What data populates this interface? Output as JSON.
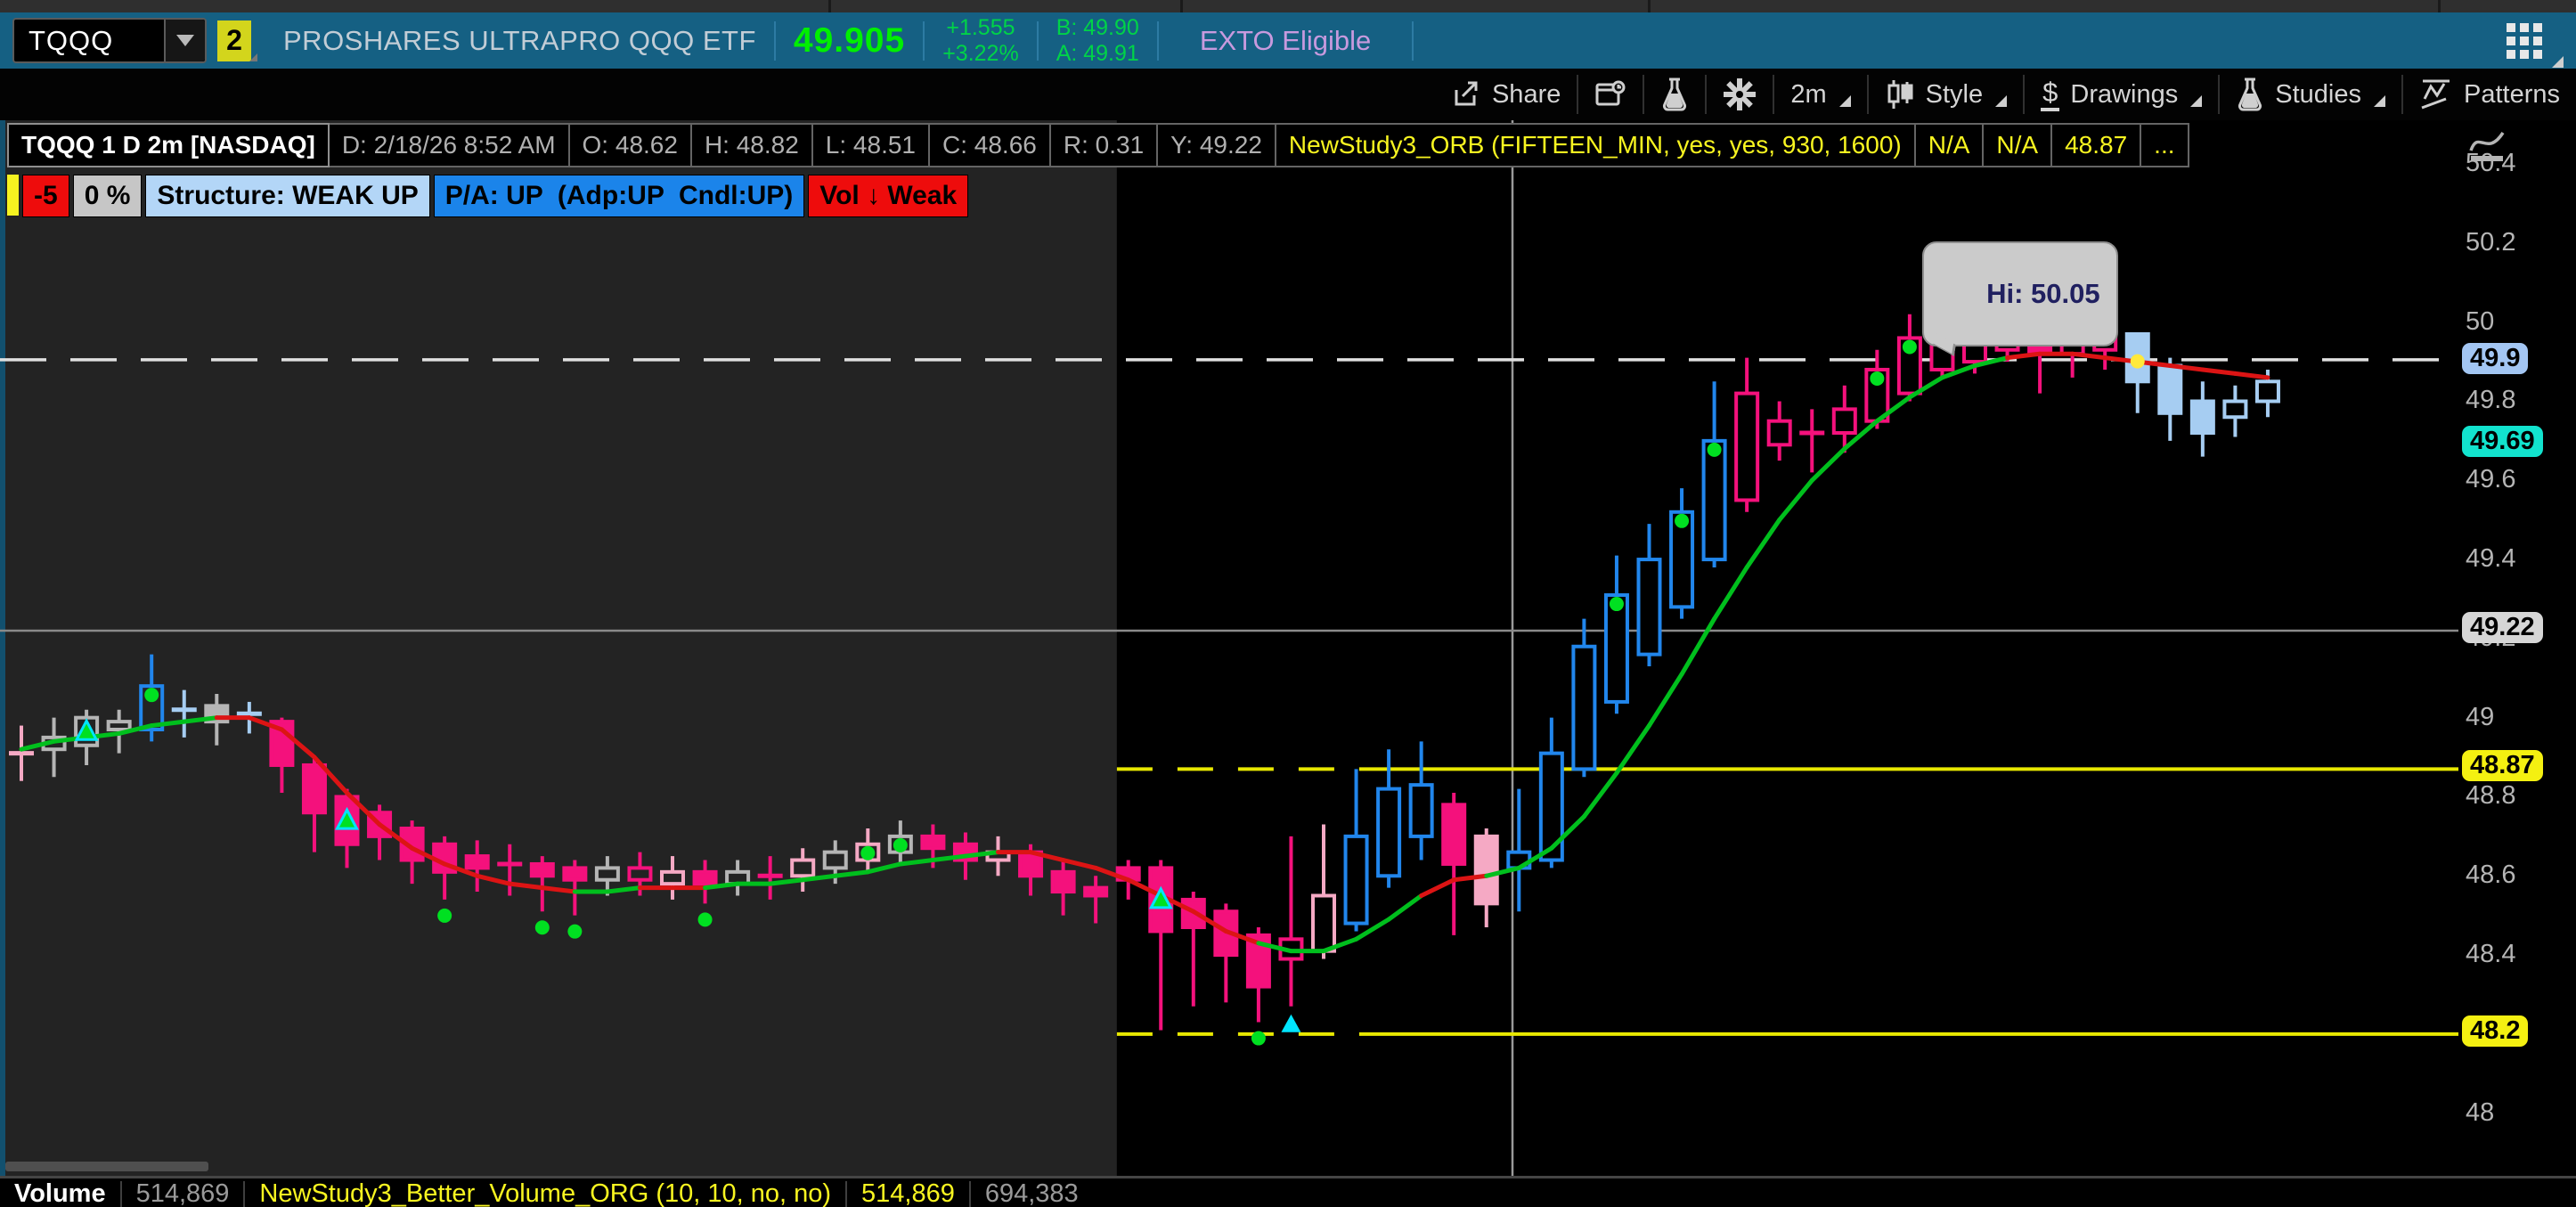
{
  "symbol_bar": {
    "symbol": "TQQQ",
    "linked_badge": "2",
    "description": "PROSHARES ULTRAPRO QQQ ETF",
    "last_price": "49.905",
    "change": "+1.555",
    "change_pct": "+3.22%",
    "bid": "B: 49.90",
    "ask": "A: 49.91",
    "tag": "EXTO Eligible"
  },
  "toolbar": {
    "share": "Share",
    "interval": "2m",
    "style": "Style",
    "drawings": "Drawings",
    "studies": "Studies",
    "patterns": "Patterns"
  },
  "chart_header": {
    "title": "TQQQ 1 D 2m [NASDAQ]",
    "cells": [
      "D: 2/18/26 8:52 AM",
      "O: 48.62",
      "H: 48.82",
      "L: 48.51",
      "C: 48.66",
      "R: 0.31",
      "Y: 49.22"
    ],
    "study_cells": [
      "NewStudy3_ORB (FIFTEEN_MIN, yes, yes, 930, 1600)",
      "N/A",
      "N/A",
      "48.87",
      "..."
    ]
  },
  "status_badges": [
    {
      "label": "-5",
      "bg": "#ee0c0c",
      "fg": "#000000"
    },
    {
      "label": "0 %",
      "bg": "#c6c6c6",
      "fg": "#000000"
    },
    {
      "label": "Structure: WEAK UP",
      "bg": "#b3d6f7",
      "fg": "#000000"
    },
    {
      "label": "P/A: UP  (Adp:UP  Cndl:UP)",
      "bg": "#1b84ea",
      "fg": "#000000"
    },
    {
      "label": "Vol ↓ Weak",
      "bg": "#ee0c0c",
      "fg": "#000000"
    }
  ],
  "price_axis": {
    "ticks": [
      {
        "label": "50.4",
        "price": 50.4
      },
      {
        "label": "50.2",
        "price": 50.2
      },
      {
        "label": "50",
        "price": 50.0
      },
      {
        "label": "49.8",
        "price": 49.8
      },
      {
        "label": "49.6",
        "price": 49.6
      },
      {
        "label": "49.4",
        "price": 49.4
      },
      {
        "label": "49.2",
        "price": 49.2
      },
      {
        "label": "49",
        "price": 49.0
      },
      {
        "label": "48.8",
        "price": 48.8
      },
      {
        "label": "48.6",
        "price": 48.6
      },
      {
        "label": "48.4",
        "price": 48.4
      },
      {
        "label": "48",
        "price": 48.0
      }
    ],
    "badges": [
      {
        "label": "49.9",
        "price": 49.9,
        "bg": "#a3c6f3"
      },
      {
        "label": "49.69",
        "price": 49.69,
        "bg": "#12e3ce"
      },
      {
        "label": "49.22",
        "price": 49.22,
        "bg": "#d6d6d6"
      },
      {
        "label": "48.87",
        "price": 48.87,
        "bg": "#f4f011"
      },
      {
        "label": "48.2",
        "price": 48.2,
        "bg": "#f4f011"
      }
    ]
  },
  "chart_data": {
    "type": "candlestick",
    "symbol": "TQQQ",
    "interval": "2m",
    "title": "TQQQ 1 D 2m [NASDAQ]",
    "ylim": [
      47.95,
      50.45
    ],
    "tooltip": {
      "text": "Hi: 50.05",
      "price": 50.05,
      "candle_index": 59
    },
    "levels": {
      "dashed_white": 49.905,
      "prev_close_gray": 49.22,
      "orb_high_yellow": 48.87,
      "orb_low_yellow": 48.2
    },
    "session_split_index": 34,
    "colors": {
      "pink": "#f4117c",
      "lightpink": "#f5a9c4",
      "blue": "#2186ec",
      "lightblue": "#a6cdf2",
      "gray": "#b5b5b5",
      "ma_green": "#00bf1d",
      "ma_red": "#dc1414",
      "marker_green": "#00e021",
      "marker_cyan": "#00e5ff",
      "marker_yellow": "#ffe93b",
      "level_yellow": "#e8e800",
      "level_gray": "#8a8a8a",
      "level_white": "#e0e0e0",
      "bg_premarket": "#232323",
      "bg_session": "#000000"
    },
    "candles": [
      [
        48.91,
        48.98,
        48.84,
        48.91,
        "lpc",
        ""
      ],
      [
        48.92,
        49.0,
        48.85,
        48.95,
        "gh",
        ""
      ],
      [
        48.93,
        49.02,
        48.88,
        49.0,
        "gh",
        "tr"
      ],
      [
        48.97,
        49.02,
        48.91,
        48.99,
        "gh",
        ""
      ],
      [
        48.97,
        49.16,
        48.94,
        49.08,
        "bh",
        "dt"
      ],
      [
        49.02,
        49.07,
        48.95,
        49.02,
        "lbc",
        ""
      ],
      [
        49.03,
        49.06,
        48.93,
        48.99,
        "gf",
        ""
      ],
      [
        49.0,
        49.04,
        48.96,
        49.01,
        "lbc",
        ""
      ],
      [
        48.99,
        49.0,
        48.81,
        48.88,
        "pf",
        ""
      ],
      [
        48.88,
        48.9,
        48.66,
        48.76,
        "pf",
        ""
      ],
      [
        48.8,
        48.82,
        48.62,
        48.68,
        "pf",
        "tr"
      ],
      [
        48.76,
        48.78,
        48.64,
        48.7,
        "pf",
        ""
      ],
      [
        48.72,
        48.74,
        48.58,
        48.64,
        "pf",
        ""
      ],
      [
        48.68,
        48.7,
        48.54,
        48.61,
        "pf",
        "db"
      ],
      [
        48.65,
        48.69,
        48.56,
        48.62,
        "pf",
        ""
      ],
      [
        48.63,
        48.68,
        48.55,
        48.63,
        "pc",
        ""
      ],
      [
        48.63,
        48.65,
        48.51,
        48.6,
        "pf",
        "db"
      ],
      [
        48.62,
        48.64,
        48.5,
        48.59,
        "pf",
        "db"
      ],
      [
        48.59,
        48.65,
        48.55,
        48.62,
        "gh",
        ""
      ],
      [
        48.62,
        48.66,
        48.55,
        48.59,
        "ph",
        ""
      ],
      [
        48.58,
        48.65,
        48.54,
        48.61,
        "lph",
        ""
      ],
      [
        48.61,
        48.64,
        48.53,
        48.58,
        "pf",
        "db"
      ],
      [
        48.58,
        48.64,
        48.55,
        48.61,
        "gh",
        ""
      ],
      [
        48.6,
        48.65,
        48.54,
        48.6,
        "pc",
        ""
      ],
      [
        48.6,
        48.67,
        48.56,
        48.64,
        "lph",
        ""
      ],
      [
        48.62,
        48.69,
        48.58,
        48.66,
        "gh",
        ""
      ],
      [
        48.64,
        48.72,
        48.61,
        48.68,
        "lph",
        "dt"
      ],
      [
        48.66,
        48.74,
        48.63,
        48.7,
        "gh",
        "dt"
      ],
      [
        48.7,
        48.73,
        48.62,
        48.67,
        "pf",
        ""
      ],
      [
        48.68,
        48.71,
        48.59,
        48.64,
        "pf",
        ""
      ],
      [
        48.64,
        48.7,
        48.6,
        48.66,
        "lph",
        ""
      ],
      [
        48.66,
        48.68,
        48.55,
        48.6,
        "pf",
        ""
      ],
      [
        48.61,
        48.64,
        48.5,
        48.56,
        "pf",
        ""
      ],
      [
        48.57,
        48.6,
        48.48,
        48.55,
        "pf",
        ""
      ],
      [
        48.62,
        48.64,
        48.54,
        48.59,
        "pf",
        ""
      ],
      [
        48.62,
        48.64,
        48.21,
        48.46,
        "pf",
        "tr"
      ],
      [
        48.54,
        48.56,
        48.27,
        48.47,
        "pf",
        ""
      ],
      [
        48.51,
        48.53,
        48.28,
        48.4,
        "pf",
        ""
      ],
      [
        48.45,
        48.47,
        48.23,
        48.32,
        "pf",
        "db"
      ],
      [
        48.44,
        48.7,
        48.27,
        48.39,
        "ph",
        "ct"
      ],
      [
        48.41,
        48.73,
        48.39,
        48.55,
        "lph",
        ""
      ],
      [
        48.48,
        48.87,
        48.46,
        48.7,
        "bh",
        ""
      ],
      [
        48.6,
        48.92,
        48.57,
        48.82,
        "bh",
        ""
      ],
      [
        48.7,
        48.94,
        48.64,
        48.83,
        "bh",
        ""
      ],
      [
        48.78,
        48.81,
        48.45,
        48.63,
        "pf",
        ""
      ],
      [
        48.7,
        48.72,
        48.47,
        48.53,
        "lpf",
        ""
      ],
      [
        48.62,
        48.82,
        48.51,
        48.66,
        "bh",
        ""
      ],
      [
        48.64,
        49.0,
        48.62,
        48.91,
        "bh",
        ""
      ],
      [
        48.87,
        49.25,
        48.85,
        49.18,
        "bh",
        ""
      ],
      [
        49.04,
        49.41,
        49.01,
        49.31,
        "bh",
        "dt"
      ],
      [
        49.16,
        49.49,
        49.13,
        49.4,
        "bh",
        ""
      ],
      [
        49.28,
        49.58,
        49.25,
        49.52,
        "bh",
        "dt"
      ],
      [
        49.4,
        49.85,
        49.38,
        49.7,
        "bh",
        "dt"
      ],
      [
        49.82,
        49.91,
        49.52,
        49.55,
        "ph",
        ""
      ],
      [
        49.75,
        49.8,
        49.65,
        49.69,
        "ph",
        ""
      ],
      [
        49.72,
        49.78,
        49.62,
        49.72,
        "pc",
        ""
      ],
      [
        49.72,
        49.84,
        49.67,
        49.78,
        "ph",
        ""
      ],
      [
        49.75,
        49.93,
        49.73,
        49.88,
        "ph",
        "dt"
      ],
      [
        49.82,
        50.02,
        49.8,
        49.96,
        "ph",
        "dt"
      ],
      [
        49.88,
        50.05,
        49.86,
        49.95,
        "ph",
        ""
      ],
      [
        49.9,
        50.0,
        49.87,
        49.95,
        "ph",
        ""
      ],
      [
        49.93,
        50.03,
        49.9,
        49.97,
        "ph",
        ""
      ],
      [
        49.96,
        49.97,
        49.82,
        49.92,
        "pf",
        ""
      ],
      [
        49.92,
        50.01,
        49.86,
        49.96,
        "ph",
        ""
      ],
      [
        49.93,
        50.03,
        49.88,
        49.97,
        "ph",
        ""
      ],
      [
        49.97,
        49.97,
        49.77,
        49.85,
        "lbf",
        "yd"
      ],
      [
        49.89,
        49.91,
        49.7,
        49.77,
        "lbf",
        ""
      ],
      [
        49.8,
        49.85,
        49.66,
        49.72,
        "lbf",
        ""
      ],
      [
        49.76,
        49.84,
        49.71,
        49.8,
        "lbh",
        ""
      ],
      [
        49.8,
        49.88,
        49.76,
        49.85,
        "lbh",
        ""
      ]
    ],
    "ma": [
      [
        48.92,
        "r"
      ],
      [
        48.94,
        "g"
      ],
      [
        48.95,
        "g"
      ],
      [
        48.96,
        "g"
      ],
      [
        48.98,
        "g"
      ],
      [
        48.99,
        "g"
      ],
      [
        49.0,
        "g"
      ],
      [
        49.0,
        "r"
      ],
      [
        48.97,
        "r"
      ],
      [
        48.9,
        "r"
      ],
      [
        48.81,
        "r"
      ],
      [
        48.73,
        "r"
      ],
      [
        48.67,
        "r"
      ],
      [
        48.63,
        "r"
      ],
      [
        48.6,
        "r"
      ],
      [
        48.58,
        "r"
      ],
      [
        48.57,
        "r"
      ],
      [
        48.56,
        "r"
      ],
      [
        48.56,
        "g"
      ],
      [
        48.57,
        "g"
      ],
      [
        48.57,
        "r"
      ],
      [
        48.57,
        "r"
      ],
      [
        48.58,
        "g"
      ],
      [
        48.58,
        "g"
      ],
      [
        48.59,
        "g"
      ],
      [
        48.6,
        "g"
      ],
      [
        48.61,
        "g"
      ],
      [
        48.63,
        "g"
      ],
      [
        48.64,
        "g"
      ],
      [
        48.65,
        "g"
      ],
      [
        48.66,
        "g"
      ],
      [
        48.66,
        "r"
      ],
      [
        48.64,
        "r"
      ],
      [
        48.62,
        "r"
      ],
      [
        48.59,
        "r"
      ],
      [
        48.55,
        "r"
      ],
      [
        48.51,
        "r"
      ],
      [
        48.46,
        "r"
      ],
      [
        48.43,
        "r"
      ],
      [
        48.41,
        "g"
      ],
      [
        48.41,
        "g"
      ],
      [
        48.44,
        "g"
      ],
      [
        48.49,
        "g"
      ],
      [
        48.55,
        "g"
      ],
      [
        48.59,
        "r"
      ],
      [
        48.6,
        "r"
      ],
      [
        48.62,
        "g"
      ],
      [
        48.67,
        "g"
      ],
      [
        48.75,
        "g"
      ],
      [
        48.86,
        "g"
      ],
      [
        48.98,
        "g"
      ],
      [
        49.11,
        "g"
      ],
      [
        49.25,
        "g"
      ],
      [
        49.38,
        "g"
      ],
      [
        49.5,
        "g"
      ],
      [
        49.6,
        "g"
      ],
      [
        49.68,
        "g"
      ],
      [
        49.75,
        "g"
      ],
      [
        49.81,
        "g"
      ],
      [
        49.86,
        "g"
      ],
      [
        49.89,
        "g"
      ],
      [
        49.91,
        "g"
      ],
      [
        49.92,
        "r"
      ],
      [
        49.92,
        "r"
      ],
      [
        49.91,
        "r"
      ],
      [
        49.9,
        "r"
      ],
      [
        49.89,
        "r"
      ],
      [
        49.88,
        "r"
      ],
      [
        49.87,
        "r"
      ],
      [
        49.86,
        "r"
      ]
    ]
  },
  "volume_row": {
    "label": "Volume",
    "value": "514,869",
    "study": "NewStudy3_Better_Volume_ORG (10, 10, no, no)",
    "study_value": "514,869",
    "extra": "694,383"
  }
}
